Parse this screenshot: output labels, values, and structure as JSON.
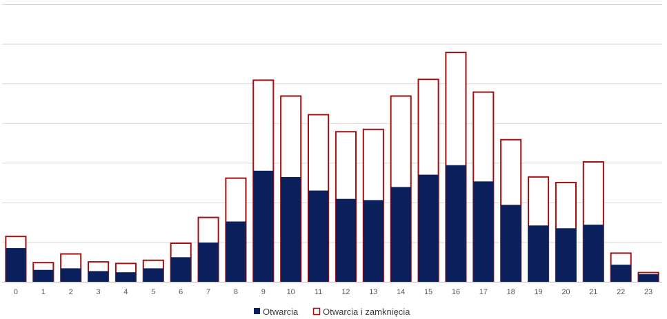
{
  "chart_data": {
    "type": "bar",
    "categories": [
      "0",
      "1",
      "2",
      "3",
      "4",
      "5",
      "6",
      "7",
      "8",
      "9",
      "10",
      "11",
      "12",
      "13",
      "14",
      "15",
      "16",
      "17",
      "18",
      "19",
      "20",
      "21",
      "22",
      "23"
    ],
    "series": [
      {
        "name": "Otwarcia i zamknięcia",
        "values": [
          1.16,
          0.5,
          0.72,
          0.52,
          0.48,
          0.56,
          0.99,
          1.64,
          2.63,
          5.1,
          4.7,
          4.23,
          3.8,
          3.86,
          4.7,
          5.12,
          5.8,
          4.8,
          3.6,
          2.66,
          2.52,
          3.04,
          0.74,
          0.25
        ]
      },
      {
        "name": "Otwarcia",
        "values": [
          0.85,
          0.3,
          0.34,
          0.27,
          0.24,
          0.34,
          0.62,
          0.99,
          1.52,
          2.8,
          2.64,
          2.3,
          2.09,
          2.06,
          2.39,
          2.7,
          2.94,
          2.53,
          1.94,
          1.42,
          1.35,
          1.44,
          0.43,
          0.19
        ]
      }
    ],
    "ylim": [
      0,
      7
    ],
    "grid": true,
    "legend": "bottom",
    "colors": {
      "Otwarcia": "#0b1f5c",
      "Otwarcia i zamknięcia": "#ffffff",
      "outline": "#a50f0f",
      "grid": "#d9d9d9",
      "axis": "#bfbfbf"
    }
  },
  "legend": {
    "items": [
      {
        "label": "Otwarcia"
      },
      {
        "label": "Otwarcia i zamknięcia"
      }
    ]
  }
}
